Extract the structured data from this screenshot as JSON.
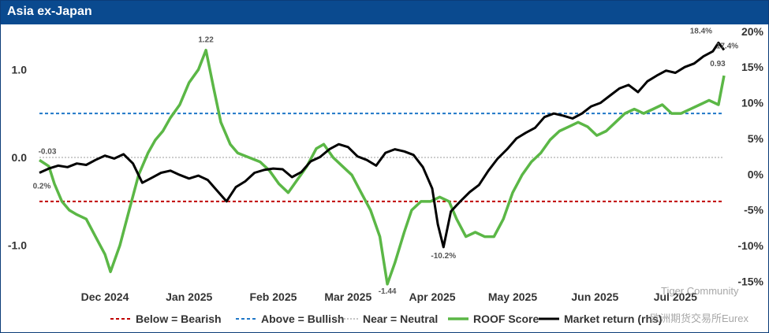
{
  "header": {
    "title": "Asia ex-Japan"
  },
  "watermark": {
    "line1": "Tiger Community",
    "line2": "欧洲期货交易所Eurex"
  },
  "chart_data": {
    "type": "line",
    "colors": {
      "score": "#5bb746",
      "market": "#000000",
      "bearish": "#c00000",
      "bullish": "#1f77c8",
      "neutral": "#b0b0b0"
    },
    "left_axis": {
      "ticks": [
        -1.0,
        0.0,
        1.0
      ],
      "tick_labels": [
        "-1.0",
        "0.0",
        "1.0"
      ],
      "range": [
        -1.45,
        1.45
      ]
    },
    "right_axis": {
      "ticks": [
        -15,
        -10,
        -5,
        0,
        5,
        10,
        15,
        20
      ],
      "tick_labels": [
        "-15%",
        "-10%",
        "-5%",
        "0%",
        "5%",
        "10%",
        "15%",
        "20%"
      ],
      "range": [
        -15.5,
        20.2
      ]
    },
    "x_ticks": [
      {
        "week": 3.5,
        "label": "Dec 2024"
      },
      {
        "week": 8.0,
        "label": "Jan 2025"
      },
      {
        "week": 12.5,
        "label": "Feb 2025"
      },
      {
        "week": 16.5,
        "label": "Mar 2025"
      },
      {
        "week": 21.0,
        "label": "Apr 2025"
      },
      {
        "week": 25.3,
        "label": "May 2025"
      },
      {
        "week": 29.7,
        "label": "Jun 2025"
      },
      {
        "week": 34.0,
        "label": "Jul 2025"
      }
    ],
    "thresholds": {
      "bullish": 0.5,
      "bearish": -0.5,
      "neutral": 0.0
    },
    "series": [
      {
        "name": "ROOF Score",
        "points": [
          [
            0,
            -0.03
          ],
          [
            0.5,
            -0.1
          ],
          [
            0.8,
            -0.3
          ],
          [
            1.2,
            -0.5
          ],
          [
            1.6,
            -0.6
          ],
          [
            2.0,
            -0.65
          ],
          [
            2.5,
            -0.7
          ],
          [
            3.0,
            -0.9
          ],
          [
            3.5,
            -1.1
          ],
          [
            3.8,
            -1.3
          ],
          [
            4.3,
            -1.0
          ],
          [
            4.8,
            -0.6
          ],
          [
            5.3,
            -0.2
          ],
          [
            5.8,
            0.05
          ],
          [
            6.2,
            0.2
          ],
          [
            6.6,
            0.3
          ],
          [
            7.0,
            0.45
          ],
          [
            7.5,
            0.6
          ],
          [
            8.0,
            0.85
          ],
          [
            8.5,
            1.0
          ],
          [
            8.9,
            1.22
          ],
          [
            9.3,
            0.8
          ],
          [
            9.7,
            0.4
          ],
          [
            10.2,
            0.15
          ],
          [
            10.6,
            0.05
          ],
          [
            11.2,
            0.0
          ],
          [
            11.8,
            -0.05
          ],
          [
            12.3,
            -0.15
          ],
          [
            12.8,
            -0.3
          ],
          [
            13.3,
            -0.4
          ],
          [
            13.8,
            -0.25
          ],
          [
            14.3,
            -0.1
          ],
          [
            14.8,
            0.1
          ],
          [
            15.2,
            0.15
          ],
          [
            15.7,
            0.0
          ],
          [
            16.2,
            -0.1
          ],
          [
            16.7,
            -0.2
          ],
          [
            17.2,
            -0.4
          ],
          [
            17.7,
            -0.6
          ],
          [
            18.2,
            -0.9
          ],
          [
            18.6,
            -1.44
          ],
          [
            19.0,
            -1.2
          ],
          [
            19.5,
            -0.85
          ],
          [
            19.9,
            -0.6
          ],
          [
            20.4,
            -0.5
          ],
          [
            20.9,
            -0.5
          ],
          [
            21.4,
            -0.45
          ],
          [
            21.9,
            -0.5
          ],
          [
            22.3,
            -0.7
          ],
          [
            22.8,
            -0.9
          ],
          [
            23.3,
            -0.85
          ],
          [
            23.8,
            -0.9
          ],
          [
            24.3,
            -0.9
          ],
          [
            24.8,
            -0.7
          ],
          [
            25.3,
            -0.4
          ],
          [
            25.8,
            -0.2
          ],
          [
            26.3,
            -0.05
          ],
          [
            26.8,
            0.05
          ],
          [
            27.3,
            0.2
          ],
          [
            27.8,
            0.3
          ],
          [
            28.3,
            0.35
          ],
          [
            28.8,
            0.4
          ],
          [
            29.3,
            0.35
          ],
          [
            29.8,
            0.25
          ],
          [
            30.3,
            0.3
          ],
          [
            30.8,
            0.4
          ],
          [
            31.3,
            0.5
          ],
          [
            31.8,
            0.55
          ],
          [
            32.3,
            0.5
          ],
          [
            32.8,
            0.55
          ],
          [
            33.3,
            0.6
          ],
          [
            33.8,
            0.5
          ],
          [
            34.3,
            0.5
          ],
          [
            34.8,
            0.55
          ],
          [
            35.3,
            0.6
          ],
          [
            35.8,
            0.65
          ],
          [
            36.3,
            0.6
          ],
          [
            36.6,
            0.93
          ]
        ]
      },
      {
        "name": "Market return (rhs)",
        "points": [
          [
            0,
            0.2
          ],
          [
            0.5,
            0.8
          ],
          [
            1.0,
            1.2
          ],
          [
            1.5,
            1.0
          ],
          [
            2.0,
            1.5
          ],
          [
            2.5,
            1.3
          ],
          [
            3.0,
            2.0
          ],
          [
            3.5,
            2.6
          ],
          [
            4.0,
            2.2
          ],
          [
            4.5,
            2.8
          ],
          [
            5.0,
            1.5
          ],
          [
            5.5,
            -1.2
          ],
          [
            6.0,
            -0.5
          ],
          [
            6.5,
            0.2
          ],
          [
            7.0,
            0.5
          ],
          [
            7.5,
            -0.1
          ],
          [
            8.0,
            -0.6
          ],
          [
            8.5,
            -0.2
          ],
          [
            9.0,
            -0.8
          ],
          [
            9.5,
            -2.3
          ],
          [
            10.0,
            -3.8
          ],
          [
            10.5,
            -1.8
          ],
          [
            11.0,
            -1.0
          ],
          [
            11.5,
            0.2
          ],
          [
            12.0,
            0.6
          ],
          [
            12.5,
            0.8
          ],
          [
            13.0,
            0.7
          ],
          [
            13.5,
            -0.4
          ],
          [
            14.0,
            0.3
          ],
          [
            14.5,
            1.8
          ],
          [
            15.0,
            2.4
          ],
          [
            15.5,
            3.5
          ],
          [
            16.0,
            4.2
          ],
          [
            16.5,
            3.8
          ],
          [
            17.0,
            2.5
          ],
          [
            17.5,
            2.0
          ],
          [
            18.0,
            1.2
          ],
          [
            18.5,
            3.0
          ],
          [
            19.0,
            3.5
          ],
          [
            19.5,
            3.2
          ],
          [
            20.0,
            2.7
          ],
          [
            20.5,
            1.0
          ],
          [
            21.0,
            -2.0
          ],
          [
            21.3,
            -7.0
          ],
          [
            21.6,
            -10.2
          ],
          [
            22.0,
            -5.2
          ],
          [
            22.5,
            -3.8
          ],
          [
            23.0,
            -2.5
          ],
          [
            23.5,
            -1.5
          ],
          [
            24.0,
            0.5
          ],
          [
            24.5,
            2.2
          ],
          [
            25.0,
            3.5
          ],
          [
            25.5,
            5.0
          ],
          [
            26.0,
            5.8
          ],
          [
            26.5,
            6.5
          ],
          [
            27.0,
            8.0
          ],
          [
            27.5,
            8.5
          ],
          [
            28.0,
            8.2
          ],
          [
            28.5,
            7.8
          ],
          [
            29.0,
            8.5
          ],
          [
            29.5,
            9.5
          ],
          [
            30.0,
            10.0
          ],
          [
            30.5,
            11.0
          ],
          [
            31.0,
            12.0
          ],
          [
            31.5,
            12.5
          ],
          [
            32.0,
            11.5
          ],
          [
            32.5,
            13.0
          ],
          [
            33.0,
            13.8
          ],
          [
            33.5,
            14.5
          ],
          [
            34.0,
            14.2
          ],
          [
            34.5,
            15.0
          ],
          [
            35.0,
            15.5
          ],
          [
            35.5,
            16.5
          ],
          [
            36.0,
            17.2
          ],
          [
            36.3,
            18.4
          ],
          [
            36.6,
            17.4
          ]
        ]
      }
    ],
    "annotations": [
      {
        "label": "-0.03",
        "series": "ROOF Score",
        "week": 0,
        "value": -0.03
      },
      {
        "label": "0.2%",
        "series": "Market return (rhs)",
        "week": 0,
        "value": 0.2
      },
      {
        "label": "1.22",
        "series": "ROOF Score",
        "week": 8.9,
        "value": 1.22
      },
      {
        "label": "-1.44",
        "series": "ROOF Score",
        "week": 18.6,
        "value": -1.44
      },
      {
        "label": "-10.2%",
        "series": "Market return (rhs)",
        "week": 21.6,
        "value": -10.2
      },
      {
        "label": "18.4%",
        "series": "Market return (rhs)",
        "week": 36.3,
        "value": 18.4
      },
      {
        "label": "17.4%",
        "series": "Market return (rhs)",
        "week": 36.6,
        "value": 17.4
      },
      {
        "label": "0.93",
        "series": "ROOF Score",
        "week": 36.6,
        "value": 0.93
      }
    ],
    "legend": {
      "placement": "bottom",
      "items": [
        {
          "label": "Below = Bearish",
          "style": "dash-red"
        },
        {
          "label": "Above = Bullish",
          "style": "dash-blue"
        },
        {
          "label": "Near = Neutral",
          "style": "dot-grey"
        },
        {
          "label": "ROOF Score",
          "style": "line-green"
        },
        {
          "label": "Market return (rhs)",
          "style": "line-black"
        }
      ]
    }
  }
}
